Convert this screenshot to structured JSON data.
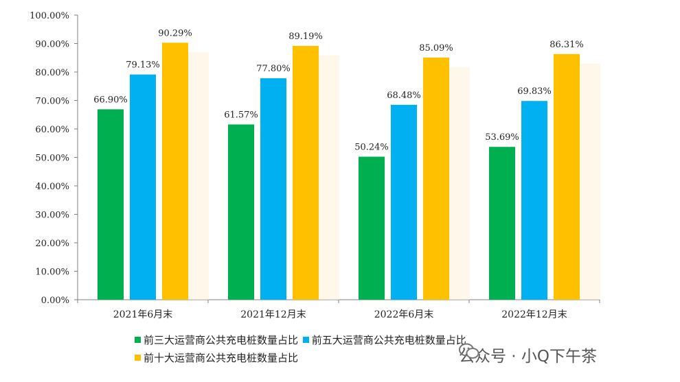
{
  "chart_data": {
    "type": "bar",
    "title": "",
    "xlabel": "",
    "ylabel": "",
    "ylim": [
      0,
      100
    ],
    "ytick_step": 10,
    "ytick_format": "0.00%",
    "categories": [
      "2021年6月末",
      "2021年12月末",
      "2022年6月末",
      "2022年12月末"
    ],
    "series": [
      {
        "name": "前三大运营商公共充电桩数量占比",
        "color": "#00B050",
        "values": [
          66.9,
          61.57,
          50.24,
          53.69
        ]
      },
      {
        "name": "前五大运营商公共充电桩数量占比",
        "color": "#00B0F0",
        "values": [
          79.13,
          77.8,
          68.48,
          69.83
        ]
      },
      {
        "name": "前十大运营商公共充电桩数量占比",
        "color": "#FFC000",
        "values": [
          90.29,
          89.19,
          85.09,
          86.31
        ]
      }
    ],
    "legend_position": "bottom"
  },
  "watermark": {
    "text": "公众号 · 小Q下午茶",
    "icon": "wechat-icon"
  }
}
